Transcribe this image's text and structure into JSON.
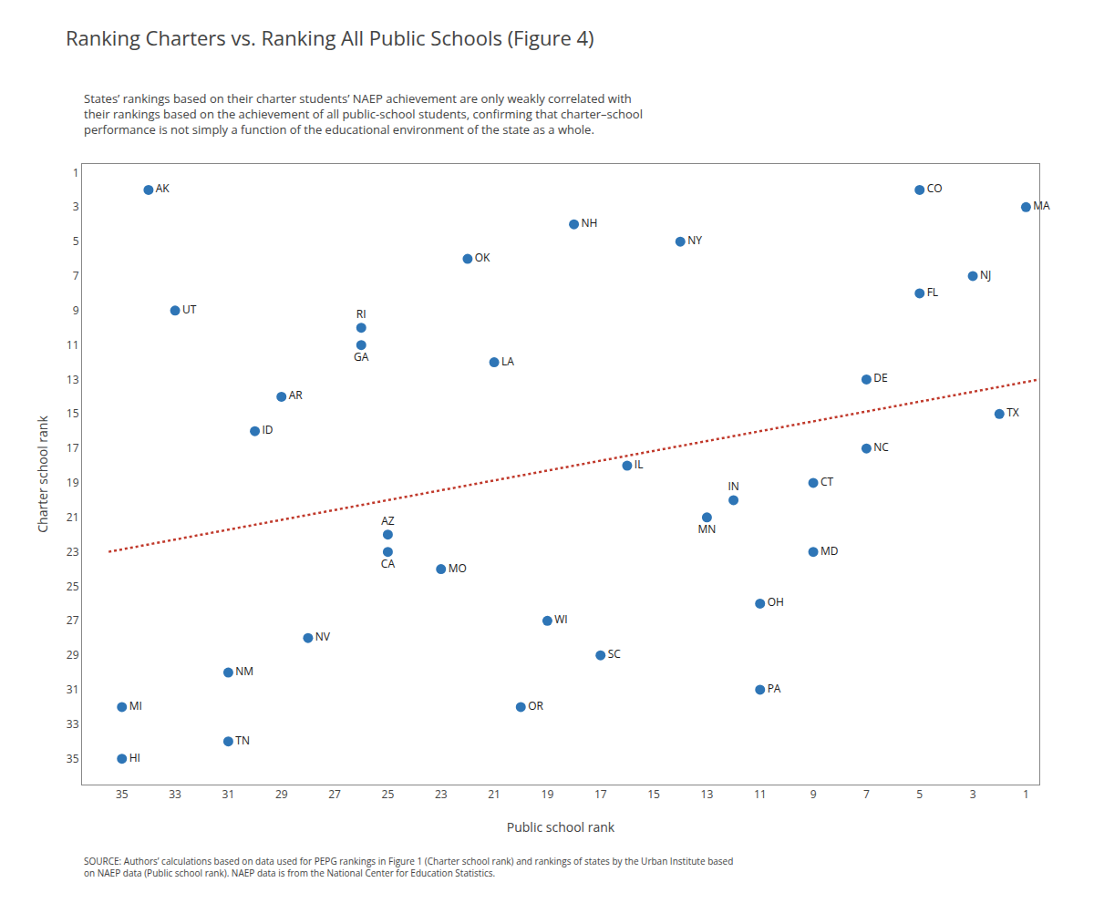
{
  "chart_data": {
    "type": "scatter",
    "title": "Ranking Charters vs. Ranking All Public Schools (Figure 4)",
    "subtitle": "States’ rankings based on their charter students’ NAEP achievement are only weakly correlated with\ntheir rankings based on the achievement of all public-school students, confirming that charter–school\nperformance is not simply a function of the educational environment of the state as a whole.",
    "xlabel": "Public school rank",
    "ylabel": "Charter school rank",
    "annotations": [
      "SOURCE: Authors’ calculations based on data used for PEPG rankings in Figure 1 (Charter school rank) and rankings of states by the Urban Institute based\non NAEP data (Public school rank). NAEP data is from the National Center for Education Statistics."
    ],
    "series": [
      {
        "type": "scatter",
        "color": "#2E75B6",
        "marker": "circle",
        "labels": [
          "AK",
          "UT",
          "MI",
          "HI",
          "TN",
          "NM",
          "ID",
          "AR",
          "NV",
          "RI",
          "GA",
          "CA",
          "AZ",
          "MO",
          "OK",
          "LA",
          "OR",
          "WI",
          "NH",
          "IL",
          "SC",
          "NY",
          "MN",
          "IN",
          "OH",
          "PA",
          "CT",
          "MD",
          "DE",
          "NC",
          "CO",
          "FL",
          "NJ",
          "MA",
          "TX"
        ],
        "x": [
          34,
          33,
          35,
          35,
          31,
          31,
          30,
          29,
          28,
          26,
          26,
          25,
          25,
          23,
          22,
          21,
          20,
          19,
          18,
          16,
          17,
          14,
          13,
          12,
          11,
          11,
          9,
          9,
          7,
          7,
          5,
          5,
          3,
          1,
          2
        ],
        "values": [
          2,
          9,
          32,
          35,
          34,
          30,
          16,
          14,
          28,
          10,
          11,
          23,
          22,
          24,
          6,
          12,
          32,
          27,
          4,
          18,
          29,
          5,
          21,
          20,
          26,
          31,
          19,
          23,
          13,
          17,
          2,
          8,
          7,
          3,
          15
        ]
      },
      {
        "type": "line",
        "color": "#C0392B",
        "line_style": "dotted",
        "x": [
          35.5,
          0.5
        ],
        "values": [
          23.0,
          13.0
        ]
      }
    ],
    "xlim": [
      36.5,
      0.5
    ],
    "ylim": [
      36.5,
      0.5
    ],
    "xticks": [
      35,
      33,
      31,
      29,
      27,
      25,
      23,
      21,
      19,
      17,
      15,
      13,
      11,
      9,
      7,
      5,
      3,
      1
    ],
    "yticks": [
      1,
      3,
      5,
      7,
      9,
      11,
      13,
      15,
      17,
      19,
      21,
      23,
      25,
      27,
      29,
      31,
      33,
      35
    ],
    "grid": false,
    "legend": false
  }
}
